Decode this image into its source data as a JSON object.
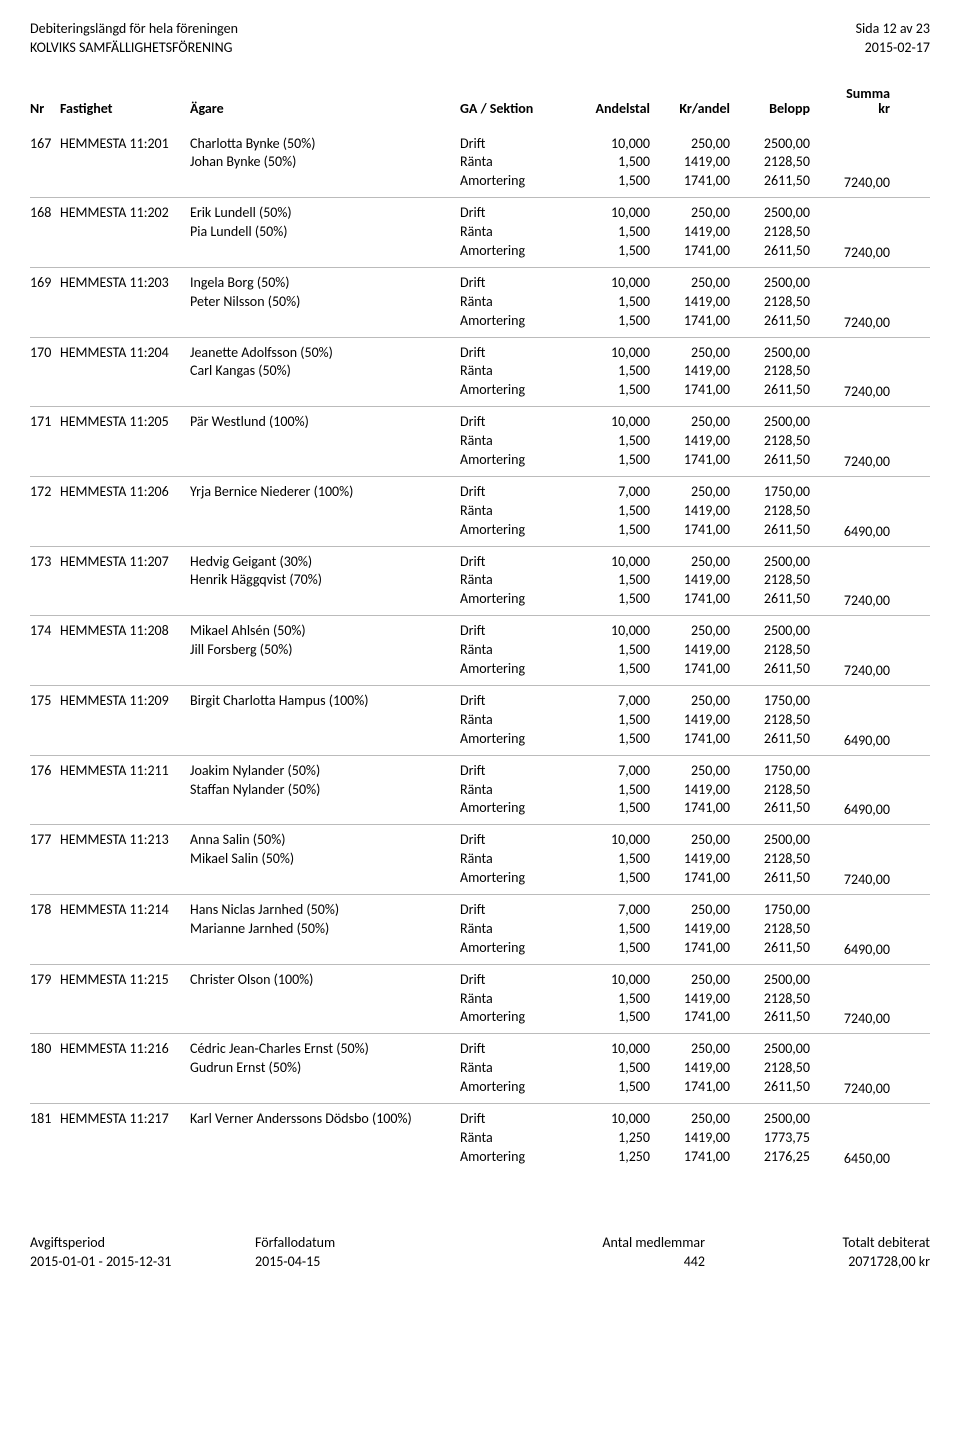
{
  "header": {
    "title1": "Debiteringslängd för hela föreningen",
    "title2": "KOLVIKS SAMFÄLLIGHETSFÖRENING",
    "page": "Sida 12 av 23",
    "date": "2015-02-17"
  },
  "columns": {
    "nr": "Nr",
    "fastighet": "Fastighet",
    "agare": "Ägare",
    "ga": "GA / Sektion",
    "andelstal": "Andelstal",
    "krandel": "Kr/andel",
    "belopp": "Belopp",
    "summa1": "Summa",
    "summa2": "kr"
  },
  "rows": [
    {
      "nr": "167",
      "fastighet": "HEMMESTA 11:201",
      "owners": [
        "Charlotta Bynke (50%)",
        "Johan Bynke (50%)"
      ],
      "lines": [
        [
          "Drift",
          "10,000",
          "250,00",
          "2500,00"
        ],
        [
          "Ränta",
          "1,500",
          "1419,00",
          "2128,50"
        ],
        [
          "Amortering",
          "1,500",
          "1741,00",
          "2611,50"
        ]
      ],
      "sum": "7240,00"
    },
    {
      "nr": "168",
      "fastighet": "HEMMESTA 11:202",
      "owners": [
        "Erik Lundell (50%)",
        "Pia Lundell (50%)"
      ],
      "lines": [
        [
          "Drift",
          "10,000",
          "250,00",
          "2500,00"
        ],
        [
          "Ränta",
          "1,500",
          "1419,00",
          "2128,50"
        ],
        [
          "Amortering",
          "1,500",
          "1741,00",
          "2611,50"
        ]
      ],
      "sum": "7240,00"
    },
    {
      "nr": "169",
      "fastighet": "HEMMESTA 11:203",
      "owners": [
        "Ingela Borg (50%)",
        "Peter Nilsson (50%)"
      ],
      "lines": [
        [
          "Drift",
          "10,000",
          "250,00",
          "2500,00"
        ],
        [
          "Ränta",
          "1,500",
          "1419,00",
          "2128,50"
        ],
        [
          "Amortering",
          "1,500",
          "1741,00",
          "2611,50"
        ]
      ],
      "sum": "7240,00"
    },
    {
      "nr": "170",
      "fastighet": "HEMMESTA 11:204",
      "owners": [
        "Jeanette Adolfsson (50%)",
        "Carl Kangas (50%)"
      ],
      "lines": [
        [
          "Drift",
          "10,000",
          "250,00",
          "2500,00"
        ],
        [
          "Ränta",
          "1,500",
          "1419,00",
          "2128,50"
        ],
        [
          "Amortering",
          "1,500",
          "1741,00",
          "2611,50"
        ]
      ],
      "sum": "7240,00"
    },
    {
      "nr": "171",
      "fastighet": "HEMMESTA 11:205",
      "owners": [
        "Pär Westlund (100%)"
      ],
      "lines": [
        [
          "Drift",
          "10,000",
          "250,00",
          "2500,00"
        ],
        [
          "Ränta",
          "1,500",
          "1419,00",
          "2128,50"
        ],
        [
          "Amortering",
          "1,500",
          "1741,00",
          "2611,50"
        ]
      ],
      "sum": "7240,00"
    },
    {
      "nr": "172",
      "fastighet": "HEMMESTA 11:206",
      "owners": [
        "Yrja Bernice Niederer (100%)"
      ],
      "lines": [
        [
          "Drift",
          "7,000",
          "250,00",
          "1750,00"
        ],
        [
          "Ränta",
          "1,500",
          "1419,00",
          "2128,50"
        ],
        [
          "Amortering",
          "1,500",
          "1741,00",
          "2611,50"
        ]
      ],
      "sum": "6490,00"
    },
    {
      "nr": "173",
      "fastighet": "HEMMESTA 11:207",
      "owners": [
        "Hedvig Geigant (30%)",
        "Henrik Häggqvist (70%)"
      ],
      "lines": [
        [
          "Drift",
          "10,000",
          "250,00",
          "2500,00"
        ],
        [
          "Ränta",
          "1,500",
          "1419,00",
          "2128,50"
        ],
        [
          "Amortering",
          "1,500",
          "1741,00",
          "2611,50"
        ]
      ],
      "sum": "7240,00"
    },
    {
      "nr": "174",
      "fastighet": "HEMMESTA 11:208",
      "owners": [
        "Mikael Ahlsén (50%)",
        "Jill Forsberg (50%)"
      ],
      "lines": [
        [
          "Drift",
          "10,000",
          "250,00",
          "2500,00"
        ],
        [
          "Ränta",
          "1,500",
          "1419,00",
          "2128,50"
        ],
        [
          "Amortering",
          "1,500",
          "1741,00",
          "2611,50"
        ]
      ],
      "sum": "7240,00"
    },
    {
      "nr": "175",
      "fastighet": "HEMMESTA 11:209",
      "owners": [
        "Birgit Charlotta Hampus (100%)"
      ],
      "lines": [
        [
          "Drift",
          "7,000",
          "250,00",
          "1750,00"
        ],
        [
          "Ränta",
          "1,500",
          "1419,00",
          "2128,50"
        ],
        [
          "Amortering",
          "1,500",
          "1741,00",
          "2611,50"
        ]
      ],
      "sum": "6490,00"
    },
    {
      "nr": "176",
      "fastighet": "HEMMESTA 11:211",
      "owners": [
        "Joakim Nylander (50%)",
        "Staffan Nylander (50%)"
      ],
      "lines": [
        [
          "Drift",
          "7,000",
          "250,00",
          "1750,00"
        ],
        [
          "Ränta",
          "1,500",
          "1419,00",
          "2128,50"
        ],
        [
          "Amortering",
          "1,500",
          "1741,00",
          "2611,50"
        ]
      ],
      "sum": "6490,00"
    },
    {
      "nr": "177",
      "fastighet": "HEMMESTA 11:213",
      "owners": [
        "Anna Salin (50%)",
        "Mikael Salin (50%)"
      ],
      "lines": [
        [
          "Drift",
          "10,000",
          "250,00",
          "2500,00"
        ],
        [
          "Ränta",
          "1,500",
          "1419,00",
          "2128,50"
        ],
        [
          "Amortering",
          "1,500",
          "1741,00",
          "2611,50"
        ]
      ],
      "sum": "7240,00"
    },
    {
      "nr": "178",
      "fastighet": "HEMMESTA 11:214",
      "owners": [
        "Hans Niclas Jarnhed (50%)",
        "Marianne Jarnhed (50%)"
      ],
      "lines": [
        [
          "Drift",
          "7,000",
          "250,00",
          "1750,00"
        ],
        [
          "Ränta",
          "1,500",
          "1419,00",
          "2128,50"
        ],
        [
          "Amortering",
          "1,500",
          "1741,00",
          "2611,50"
        ]
      ],
      "sum": "6490,00"
    },
    {
      "nr": "179",
      "fastighet": "HEMMESTA 11:215",
      "owners": [
        "Christer Olson (100%)"
      ],
      "lines": [
        [
          "Drift",
          "10,000",
          "250,00",
          "2500,00"
        ],
        [
          "Ränta",
          "1,500",
          "1419,00",
          "2128,50"
        ],
        [
          "Amortering",
          "1,500",
          "1741,00",
          "2611,50"
        ]
      ],
      "sum": "7240,00"
    },
    {
      "nr": "180",
      "fastighet": "HEMMESTA 11:216",
      "owners": [
        "Cédric Jean-Charles Ernst (50%)",
        "Gudrun Ernst (50%)"
      ],
      "lines": [
        [
          "Drift",
          "10,000",
          "250,00",
          "2500,00"
        ],
        [
          "Ränta",
          "1,500",
          "1419,00",
          "2128,50"
        ],
        [
          "Amortering",
          "1,500",
          "1741,00",
          "2611,50"
        ]
      ],
      "sum": "7240,00"
    },
    {
      "nr": "181",
      "fastighet": "HEMMESTA 11:217",
      "owners": [
        "Karl Verner Anderssons Dödsbo (100%)"
      ],
      "lines": [
        [
          "Drift",
          "10,000",
          "250,00",
          "2500,00"
        ],
        [
          "Ränta",
          "1,250",
          "1419,00",
          "1773,75"
        ],
        [
          "Amortering",
          "1,250",
          "1741,00",
          "2176,25"
        ]
      ],
      "sum": "6450,00"
    }
  ],
  "footer": {
    "period_label": "Avgiftsperiod",
    "period_value": "2015-01-01 - 2015-12-31",
    "due_label": "Förfallodatum",
    "due_value": "2015-04-15",
    "members_label": "Antal medlemmar",
    "members_value": "442",
    "total_label": "Totalt debiterat",
    "total_value": "2071728,00 kr"
  }
}
